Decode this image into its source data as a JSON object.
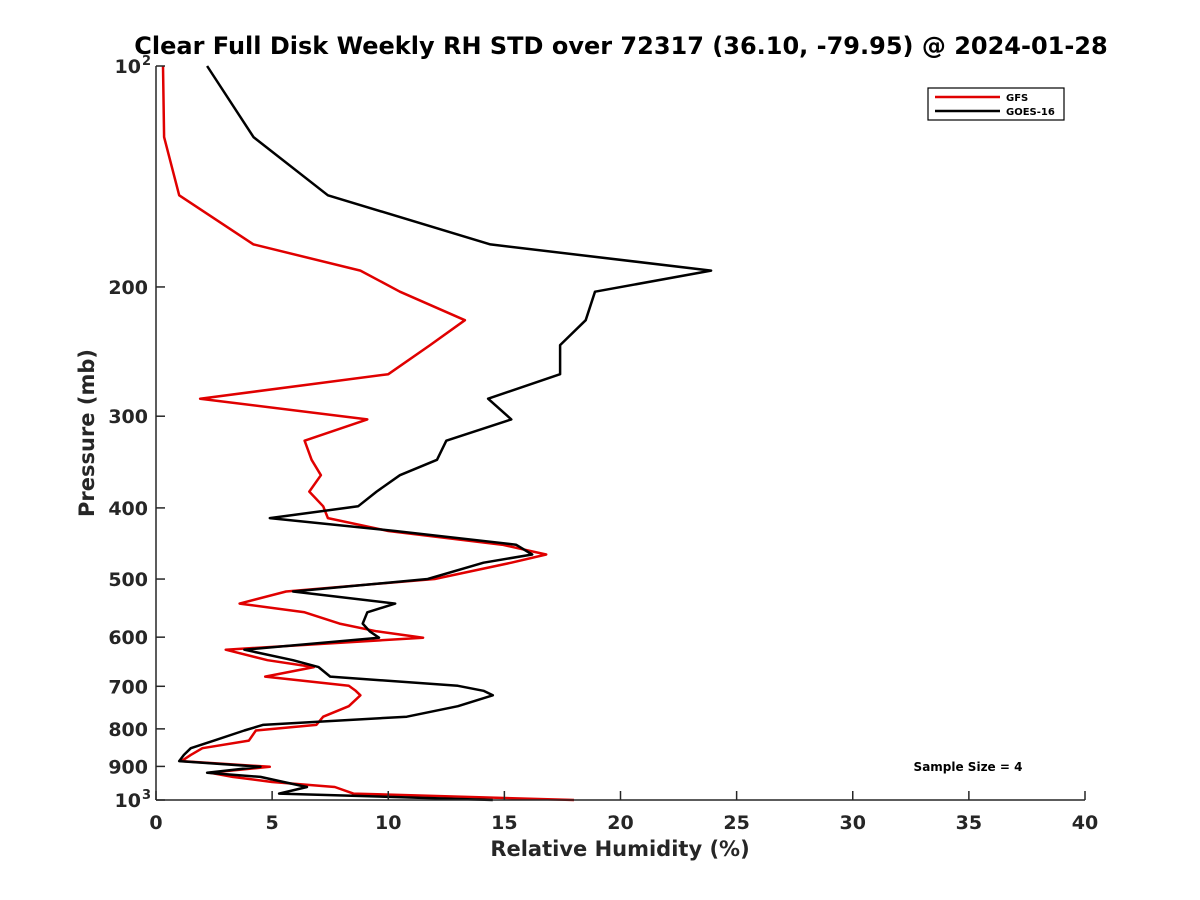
{
  "chart_data": {
    "type": "line",
    "title": "Clear Full Disk Weekly RH STD over 72317 (36.10, -79.95) @ 2024-01-28",
    "xlabel": "Relative Humidity (%)",
    "ylabel": "Pressure (mb)",
    "xlim": [
      0,
      40
    ],
    "ylim": [
      100,
      1000
    ],
    "y_scale": "log",
    "y_reversed": true,
    "x_ticks": [
      "0",
      "5",
      "10",
      "15",
      "20",
      "25",
      "30",
      "35",
      "40"
    ],
    "y_ticks": [
      {
        "value": 100,
        "label": "10",
        "sup": "2"
      },
      {
        "value": 200,
        "label": "200",
        "sup": ""
      },
      {
        "value": 300,
        "label": "300",
        "sup": ""
      },
      {
        "value": 400,
        "label": "400",
        "sup": ""
      },
      {
        "value": 500,
        "label": "500",
        "sup": ""
      },
      {
        "value": 600,
        "label": "600",
        "sup": ""
      },
      {
        "value": 700,
        "label": "700",
        "sup": ""
      },
      {
        "value": 800,
        "label": "800",
        "sup": ""
      },
      {
        "value": 900,
        "label": "900",
        "sup": ""
      },
      {
        "value": 1000,
        "label": "10",
        "sup": "3"
      }
    ],
    "legend_position": "top-right",
    "annotation": "Sample Size = 4",
    "series": [
      {
        "name": "GFS",
        "color": "#e00000",
        "points": [
          [
            0.3,
            100
          ],
          [
            0.35,
            125
          ],
          [
            1.0,
            150
          ],
          [
            4.2,
            175
          ],
          [
            8.8,
            190
          ],
          [
            10.5,
            203
          ],
          [
            13.3,
            222
          ],
          [
            11.8,
            240
          ],
          [
            10.0,
            263
          ],
          [
            1.9,
            284
          ],
          [
            9.1,
            303
          ],
          [
            6.4,
            324
          ],
          [
            6.7,
            344
          ],
          [
            7.1,
            361
          ],
          [
            6.6,
            380
          ],
          [
            7.2,
            398
          ],
          [
            7.4,
            413
          ],
          [
            10.0,
            430
          ],
          [
            14.9,
            449
          ],
          [
            16.8,
            463
          ],
          [
            15.3,
            475
          ],
          [
            12.0,
            500
          ],
          [
            5.6,
            520
          ],
          [
            3.6,
            540
          ],
          [
            6.4,
            555
          ],
          [
            7.9,
            575
          ],
          [
            9.5,
            589
          ],
          [
            11.5,
            601
          ],
          [
            3.0,
            624
          ],
          [
            4.8,
            645
          ],
          [
            6.8,
            659
          ],
          [
            4.7,
            679
          ],
          [
            8.3,
            699
          ],
          [
            8.6,
            710
          ],
          [
            8.8,
            720
          ],
          [
            8.3,
            745
          ],
          [
            7.2,
            770
          ],
          [
            6.9,
            790
          ],
          [
            4.3,
            804
          ],
          [
            4.0,
            830
          ],
          [
            2.0,
            850
          ],
          [
            1.5,
            868
          ],
          [
            1.1,
            885
          ],
          [
            4.9,
            901
          ],
          [
            2.3,
            918
          ],
          [
            3.3,
            930
          ],
          [
            5.0,
            945
          ],
          [
            7.7,
            960
          ],
          [
            8.5,
            980
          ],
          [
            18.0,
            1000
          ]
        ]
      },
      {
        "name": "GOES-16",
        "color": "#000000",
        "points": [
          [
            2.2,
            100
          ],
          [
            4.2,
            125
          ],
          [
            7.4,
            150
          ],
          [
            14.4,
            175
          ],
          [
            23.9,
            190
          ],
          [
            18.9,
            203
          ],
          [
            18.5,
            222
          ],
          [
            17.4,
            240
          ],
          [
            17.4,
            263
          ],
          [
            14.3,
            284
          ],
          [
            15.3,
            303
          ],
          [
            12.5,
            324
          ],
          [
            12.1,
            344
          ],
          [
            10.5,
            361
          ],
          [
            9.5,
            380
          ],
          [
            8.7,
            398
          ],
          [
            4.9,
            413
          ],
          [
            10.3,
            430
          ],
          [
            15.5,
            449
          ],
          [
            16.2,
            463
          ],
          [
            14.1,
            475
          ],
          [
            11.7,
            500
          ],
          [
            5.9,
            520
          ],
          [
            10.3,
            540
          ],
          [
            9.1,
            555
          ],
          [
            8.9,
            575
          ],
          [
            9.2,
            589
          ],
          [
            9.6,
            601
          ],
          [
            3.8,
            624
          ],
          [
            5.9,
            645
          ],
          [
            7.0,
            659
          ],
          [
            7.5,
            679
          ],
          [
            13.0,
            699
          ],
          [
            14.1,
            710
          ],
          [
            14.5,
            720
          ],
          [
            13.0,
            745
          ],
          [
            10.8,
            770
          ],
          [
            4.6,
            790
          ],
          [
            3.8,
            804
          ],
          [
            2.5,
            830
          ],
          [
            1.5,
            850
          ],
          [
            1.2,
            868
          ],
          [
            1.0,
            885
          ],
          [
            4.5,
            901
          ],
          [
            2.2,
            918
          ],
          [
            4.5,
            930
          ],
          [
            5.5,
            945
          ],
          [
            6.5,
            960
          ],
          [
            5.3,
            980
          ],
          [
            14.5,
            1000
          ]
        ]
      }
    ]
  }
}
